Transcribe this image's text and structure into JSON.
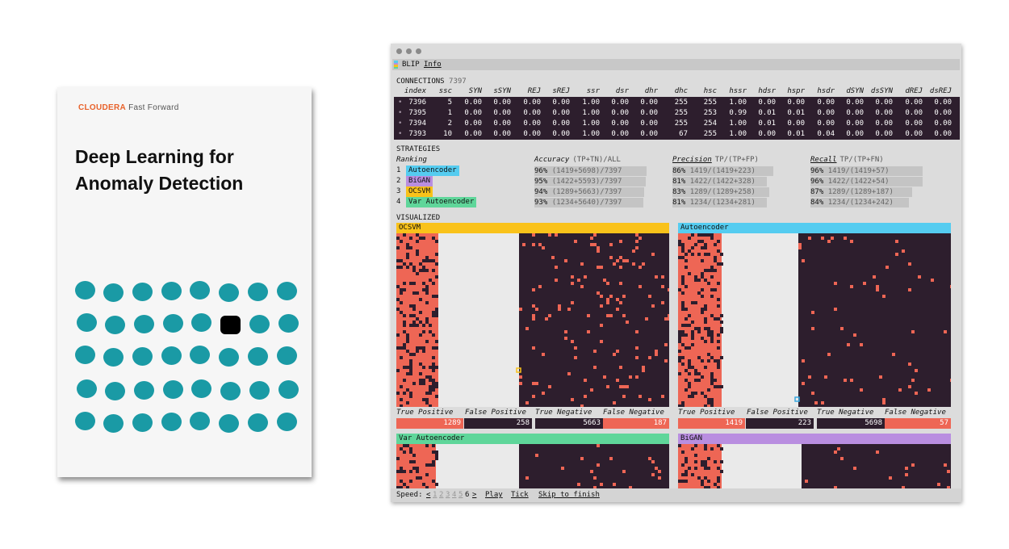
{
  "cover": {
    "brand_primary": "CLOUDERA",
    "brand_secondary": "Fast Forward",
    "title_line1": "Deep Learning for",
    "title_line2": "Anomaly Detection",
    "dot_color": "#1a9aa5",
    "anomaly_dot_color": "#000000"
  },
  "app": {
    "name": "BLIP",
    "info_link": "Info"
  },
  "connections": {
    "label": "CONNECTIONS",
    "count": "7397",
    "columns": [
      "index",
      "ssc",
      "SYN",
      "sSYN",
      "REJ",
      "sREJ",
      "ssr",
      "dsr",
      "dhr",
      "dhc",
      "hsc",
      "hssr",
      "hdsr",
      "hspr",
      "hsdr",
      "dSYN",
      "dsSYN",
      "dREJ",
      "dsREJ"
    ],
    "rows": [
      [
        "7396",
        "5",
        "0.00",
        "0.00",
        "0.00",
        "0.00",
        "1.00",
        "0.00",
        "0.00",
        "255",
        "255",
        "1.00",
        "0.00",
        "0.00",
        "0.00",
        "0.00",
        "0.00",
        "0.00",
        "0.00"
      ],
      [
        "7395",
        "1",
        "0.00",
        "0.00",
        "0.00",
        "0.00",
        "1.00",
        "0.00",
        "0.00",
        "255",
        "253",
        "0.99",
        "0.01",
        "0.01",
        "0.00",
        "0.00",
        "0.00",
        "0.00",
        "0.00"
      ],
      [
        "7394",
        "2",
        "0.00",
        "0.00",
        "0.00",
        "0.00",
        "1.00",
        "0.00",
        "0.00",
        "255",
        "254",
        "1.00",
        "0.01",
        "0.00",
        "0.00",
        "0.00",
        "0.00",
        "0.00",
        "0.00"
      ],
      [
        "7393",
        "10",
        "0.00",
        "0.00",
        "0.00",
        "0.00",
        "1.00",
        "0.00",
        "0.00",
        "67",
        "255",
        "1.00",
        "0.00",
        "0.01",
        "0.04",
        "0.00",
        "0.00",
        "0.00",
        "0.00"
      ]
    ]
  },
  "strategies": {
    "label": "STRATEGIES",
    "ranking_label": "Ranking",
    "accuracy_label": "Accuracy",
    "accuracy_formula": "(TP+TN)/ALL",
    "precision_label": "Precision",
    "precision_formula": "TP/(TP+FP)",
    "recall_label": "Recall",
    "recall_formula": "TP/(TP+FN)",
    "items": [
      {
        "rank": "1",
        "name": "Autoencoder",
        "color": "#55ccf0",
        "accuracy_pct": "96%",
        "accuracy_calc": "(1419+5698)/7397",
        "accuracy": 0.96,
        "precision_pct": "86%",
        "precision_calc": "1419/(1419+223)",
        "precision": 0.86,
        "recall_pct": "96%",
        "recall_calc": "1419/(1419+57)",
        "recall": 0.96
      },
      {
        "rank": "2",
        "name": "BiGAN",
        "color": "#b98ee0",
        "accuracy_pct": "95%",
        "accuracy_calc": "(1422+5593)/7397",
        "accuracy": 0.95,
        "precision_pct": "81%",
        "precision_calc": "1422/(1422+328)",
        "precision": 0.81,
        "recall_pct": "96%",
        "recall_calc": "1422/(1422+54)",
        "recall": 0.96
      },
      {
        "rank": "3",
        "name": "OCSVM",
        "color": "#f9c21a",
        "accuracy_pct": "94%",
        "accuracy_calc": "(1289+5663)/7397",
        "accuracy": 0.94,
        "precision_pct": "83%",
        "precision_calc": "1289/(1289+258)",
        "precision": 0.83,
        "recall_pct": "87%",
        "recall_calc": "1289/(1289+187)",
        "recall": 0.87
      },
      {
        "rank": "4",
        "name": "Var Autoencoder",
        "color": "#5fd69a",
        "accuracy_pct": "93%",
        "accuracy_calc": "(1234+5640)/7397",
        "accuracy": 0.93,
        "precision_pct": "81%",
        "precision_calc": "1234/(1234+281)",
        "precision": 0.81,
        "recall_pct": "84%",
        "recall_calc": "1234/(1234+242)",
        "recall": 0.84
      }
    ]
  },
  "visualized": {
    "label": "VISUALIZED",
    "stat_labels": {
      "tp": "True Positive",
      "fp": "False Positive",
      "tn": "True Negative",
      "fn": "False Negative"
    },
    "colors": {
      "anomaly": "#ee6655",
      "normal": "#2d1e2d",
      "empty": "#eaeaea"
    },
    "panels": [
      {
        "name": "OCSVM",
        "color": "#f9c21a",
        "tp": "1289",
        "fp": "258",
        "tn": "5663",
        "fn": "187",
        "marker_color": "#f9c21a"
      },
      {
        "name": "Autoencoder",
        "color": "#55ccf0",
        "tp": "1419",
        "fp": "223",
        "tn": "5698",
        "fn": "57",
        "marker_color": "#3aa8e0"
      },
      {
        "name": "Var Autoencoder",
        "color": "#5fd69a"
      },
      {
        "name": "BiGAN",
        "color": "#b98ee0"
      }
    ]
  },
  "footer": {
    "speed_label": "Speed:",
    "prev": "<",
    "speeds": [
      "1",
      "2",
      "3",
      "4",
      "5",
      "6"
    ],
    "current_speed": "6",
    "next": ">",
    "play": "Play",
    "tick": "Tick",
    "skip": "Skip to finish"
  }
}
